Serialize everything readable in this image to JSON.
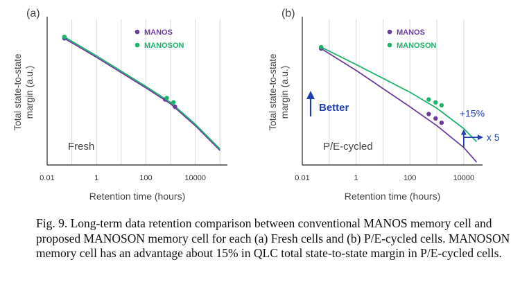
{
  "chart_data": [
    {
      "type": "line",
      "panel_label": "(a)",
      "ylabel_line1": "Total state-to-state",
      "ylabel_line2": "margin (a.u.)",
      "xlabel": "Retention time (hours)",
      "x_scale": "log",
      "xlim": [
        0.01,
        200000
      ],
      "ylim": [
        0,
        1
      ],
      "x_ticks": [
        0.01,
        1,
        100,
        10000
      ],
      "x_tick_labels": [
        "0.01",
        "1",
        "100",
        "10000"
      ],
      "annotation": "Fresh",
      "legend_position": "top-right",
      "series": [
        {
          "name": "MANOS",
          "color": "#6a3d9a",
          "x": [
            0.05,
            1,
            100,
            1000,
            10000,
            100000
          ],
          "y": [
            0.87,
            0.74,
            0.53,
            0.42,
            0.27,
            0.1
          ],
          "markers_x": [
            0.05,
            600,
            1500
          ],
          "markers_y": [
            0.87,
            0.45,
            0.4
          ]
        },
        {
          "name": "MANOSON",
          "color": "#1db36b",
          "x": [
            0.05,
            1,
            100,
            1000,
            10000,
            100000
          ],
          "y": [
            0.88,
            0.75,
            0.54,
            0.43,
            0.28,
            0.11
          ],
          "markers_x": [
            0.05,
            700,
            1300
          ],
          "markers_y": [
            0.88,
            0.46,
            0.43
          ]
        }
      ]
    },
    {
      "type": "line",
      "panel_label": "(b)",
      "ylabel_line1": "Total state-to-state",
      "ylabel_line2": "margin (a.u.)",
      "xlabel": "Retention time (hours)",
      "x_scale": "log",
      "xlim": [
        0.01,
        50000
      ],
      "ylim": [
        0,
        1
      ],
      "x_ticks": [
        0.01,
        1,
        100,
        10000
      ],
      "x_tick_labels": [
        "0.01",
        "1",
        "100",
        "10000"
      ],
      "annotation": "P/E-cycled",
      "better_label": "Better",
      "gain_label": "+15%",
      "time_label": "x 5",
      "legend_position": "top-right",
      "series": [
        {
          "name": "MANOS",
          "color": "#6a3d9a",
          "x": [
            0.05,
            1,
            100,
            1000,
            10000,
            30000
          ],
          "y": [
            0.8,
            0.65,
            0.4,
            0.27,
            0.12,
            0.02
          ],
          "markers_x": [
            0.05,
            500,
            900,
            1500
          ],
          "markers_y": [
            0.8,
            0.35,
            0.32,
            0.29
          ]
        },
        {
          "name": "MANOSON",
          "color": "#1db36b",
          "x": [
            0.05,
            1,
            100,
            1000,
            10000,
            30000
          ],
          "y": [
            0.81,
            0.69,
            0.5,
            0.39,
            0.25,
            0.16
          ],
          "markers_x": [
            0.05,
            500,
            900,
            1500
          ],
          "markers_y": [
            0.81,
            0.45,
            0.43,
            0.41
          ]
        }
      ]
    }
  ],
  "caption": "Fig. 9. Long-term data retention comparison between conventional MANOS memory cell and proposed MANOSON memory cell for each (a) Fresh cells and (b) P/E-cycled cells. MANOSON memory cell has an advantage about 15% in QLC total state-to-state margin in P/E-cycled cells."
}
